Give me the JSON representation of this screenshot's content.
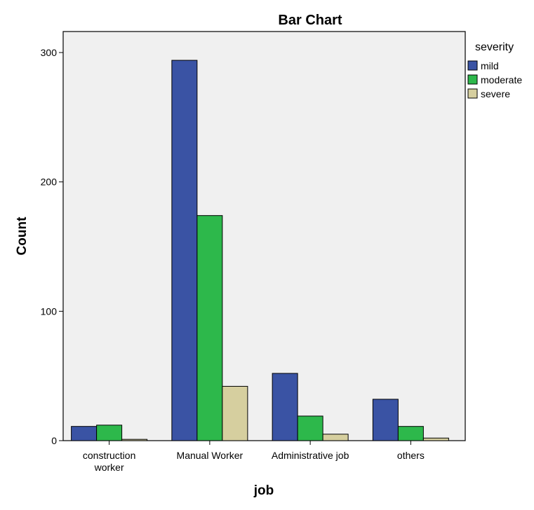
{
  "chart_data": {
    "type": "bar",
    "title": "Bar Chart",
    "xlabel": "job",
    "ylabel": "Count",
    "categories": [
      [
        "construction",
        "worker"
      ],
      [
        "Manual Worker"
      ],
      [
        "Administrative job"
      ],
      [
        "others"
      ]
    ],
    "series": [
      {
        "name": "mild",
        "color": "#3a53a4",
        "values": [
          11,
          294,
          52,
          32
        ]
      },
      {
        "name": "moderate",
        "color": "#2db84b",
        "values": [
          12,
          174,
          19,
          11
        ]
      },
      {
        "name": "severe",
        "color": "#d6cf9f",
        "values": [
          1,
          42,
          5,
          2
        ]
      }
    ],
    "legend_title": "severity",
    "legend_position": "top-right-outside",
    "ylim": [
      0,
      300
    ],
    "yticks": [
      0,
      100,
      200,
      300
    ],
    "grid": false,
    "plot_background": "#f0f0f0"
  }
}
